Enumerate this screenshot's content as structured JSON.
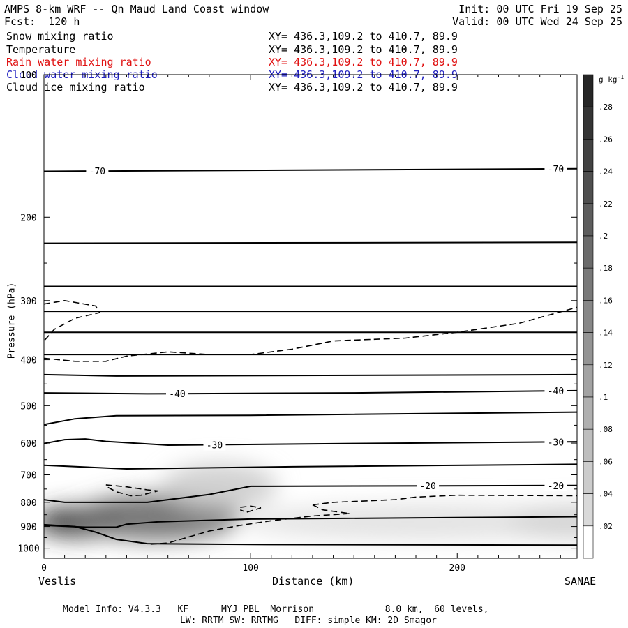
{
  "header": {
    "title": "AMPS 8-km WRF -- Qn Maud Land Coast window",
    "forecast": "Fcst:  120 h",
    "init": "Init: 00 UTC Fri 19 Sep 25",
    "valid": "Valid: 00 UTC Wed 24 Sep 25"
  },
  "fields": [
    {
      "name": "Snow mixing ratio",
      "xy": "XY= 436.3,109.2 to 410.7, 89.9",
      "color": "#000000"
    },
    {
      "name": "Temperature",
      "xy": "XY= 436.3,109.2 to 410.7, 89.9",
      "color": "#000000"
    },
    {
      "name": "Rain water mixing ratio",
      "xy": "XY= 436.3,109.2 to 410.7, 89.9",
      "color": "#e01010"
    },
    {
      "name": "Cloud water mixing ratio",
      "xy": "XY= 436.3,109.2 to 410.7, 89.9",
      "color": "#2020c0"
    },
    {
      "name": "Cloud ice mixing ratio",
      "xy": "XY= 436.3,109.2 to 410.7, 89.9",
      "color": "#000000"
    }
  ],
  "footer": {
    "line1": "Model Info: V4.3.3   KF      MYJ PBL  Morrison             8.0 km,  60 levels,",
    "line2": "LW: RRTM SW: RRTMG   DIFF: simple KM: 2D Smagor"
  },
  "chart_data": {
    "type": "contour-cross-section",
    "xlabel": "Distance (km)",
    "ylabel": "Pressure (hPa)",
    "xlim": [
      0,
      258
    ],
    "ylim": [
      1050,
      100
    ],
    "x_ticks": [
      0,
      100,
      200
    ],
    "y_ticks": [
      1000,
      900,
      800,
      700,
      600,
      500,
      400,
      300,
      200,
      100
    ],
    "start_label": "Veslis",
    "end_label": "SANAE",
    "colorbar": {
      "unit": "g kg",
      "unit_exponent": "-1",
      "ticks": [
        ".28",
        ".26",
        ".24",
        ".22",
        ".2",
        ".18",
        ".16",
        ".14",
        ".12",
        ".1",
        ".08",
        ".06",
        ".04",
        ".02"
      ]
    },
    "temperature_contours": [
      {
        "label": "-70",
        "points": [
          [
            0,
            160
          ],
          [
            258,
            158
          ]
        ]
      },
      {
        "label": "",
        "points": [
          [
            0,
            227
          ],
          [
            258,
            226
          ]
        ]
      },
      {
        "label": "",
        "points": [
          [
            0,
            280
          ],
          [
            258,
            280
          ]
        ]
      },
      {
        "label": "",
        "points": [
          [
            0,
            316
          ],
          [
            258,
            316
          ]
        ]
      },
      {
        "label": "",
        "points": [
          [
            0,
            350
          ],
          [
            258,
            350
          ]
        ]
      },
      {
        "label": "",
        "points": [
          [
            0,
            390
          ],
          [
            258,
            390
          ]
        ]
      },
      {
        "label": "",
        "points": [
          [
            0,
            430
          ],
          [
            35,
            433
          ],
          [
            258,
            430
          ]
        ]
      },
      {
        "label": "-40",
        "points": [
          [
            0,
            470
          ],
          [
            50,
            472
          ],
          [
            150,
            470
          ],
          [
            258,
            465
          ]
        ]
      },
      {
        "label": "",
        "points": [
          [
            0,
            548
          ],
          [
            15,
            533
          ],
          [
            35,
            525
          ],
          [
            100,
            524
          ],
          [
            258,
            516
          ]
        ]
      },
      {
        "label": "-30",
        "points": [
          [
            0,
            601
          ],
          [
            10,
            590
          ],
          [
            20,
            588
          ],
          [
            30,
            595
          ],
          [
            60,
            606
          ],
          [
            150,
            601
          ],
          [
            258,
            596
          ]
        ]
      },
      {
        "label": "",
        "points": [
          [
            0,
            668
          ],
          [
            40,
            680
          ],
          [
            120,
            673
          ],
          [
            258,
            665
          ]
        ]
      },
      {
        "label": "-20",
        "points": [
          [
            0,
            790
          ],
          [
            10,
            800
          ],
          [
            50,
            800
          ],
          [
            80,
            770
          ],
          [
            100,
            740
          ],
          [
            258,
            737
          ]
        ]
      },
      {
        "label": "",
        "points": [
          [
            0,
            895
          ],
          [
            20,
            903
          ],
          [
            35,
            903
          ],
          [
            40,
            890
          ],
          [
            55,
            880
          ],
          [
            100,
            868
          ],
          [
            258,
            858
          ]
        ]
      },
      {
        "label": "",
        "points": [
          [
            0,
            892
          ],
          [
            15,
            900
          ],
          [
            25,
            925
          ],
          [
            35,
            958
          ],
          [
            50,
            978
          ],
          [
            100,
            982
          ],
          [
            258,
            985
          ]
        ]
      }
    ],
    "snow_dashed_contours": [
      {
        "points": [
          [
            0,
            305
          ],
          [
            10,
            300
          ],
          [
            25,
            308
          ],
          [
            27,
            318
          ],
          [
            15,
            327
          ],
          [
            5,
            345
          ],
          [
            0,
            365
          ]
        ]
      },
      {
        "points": [
          [
            0,
            397
          ],
          [
            15,
            403
          ],
          [
            30,
            403
          ],
          [
            40,
            393
          ],
          [
            60,
            385
          ],
          [
            80,
            390
          ],
          [
            100,
            390
          ],
          [
            120,
            380
          ],
          [
            140,
            365
          ],
          [
            175,
            360
          ],
          [
            200,
            350
          ],
          [
            230,
            335
          ],
          [
            258,
            310
          ]
        ]
      },
      {
        "points": [
          [
            30,
            735
          ],
          [
            40,
            742
          ],
          [
            50,
            753
          ],
          [
            55,
            757
          ],
          [
            47,
            773
          ],
          [
            42,
            775
          ],
          [
            35,
            760
          ],
          [
            30,
            740
          ]
        ]
      },
      {
        "points": [
          [
            95,
            820
          ],
          [
            100,
            815
          ],
          [
            105,
            822
          ],
          [
            98,
            840
          ],
          [
            95,
            830
          ]
        ]
      },
      {
        "points": [
          [
            130,
            810
          ],
          [
            140,
            800
          ],
          [
            170,
            790
          ],
          [
            180,
            780
          ],
          [
            200,
            773
          ],
          [
            258,
            775
          ]
        ]
      },
      {
        "points": [
          [
            130,
            810
          ],
          [
            135,
            830
          ],
          [
            148,
            845
          ],
          [
            130,
            855
          ],
          [
            110,
            875
          ],
          [
            95,
            895
          ],
          [
            80,
            920
          ],
          [
            60,
            975
          ],
          [
            50,
            982
          ]
        ]
      }
    ],
    "snow_shading": [
      {
        "x": 17,
        "p": 880,
        "value": 0.28,
        "rx": 22,
        "rp": 95
      },
      {
        "x": 55,
        "p": 860,
        "value": 0.2,
        "rx": 40,
        "rp": 140
      },
      {
        "x": 85,
        "p": 740,
        "value": 0.06,
        "rx": 28,
        "rp": 120
      },
      {
        "x": 185,
        "p": 880,
        "value": 0.03,
        "rx": 90,
        "rp": 110
      },
      {
        "x": 255,
        "p": 880,
        "value": 0.05,
        "rx": 30,
        "rp": 110
      }
    ]
  }
}
